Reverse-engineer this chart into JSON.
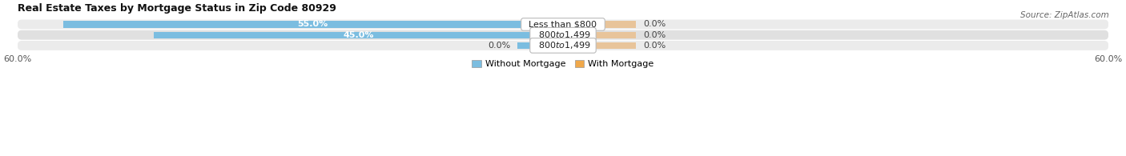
{
  "title": "Real Estate Taxes by Mortgage Status in Zip Code 80929",
  "source": "Source: ZipAtlas.com",
  "rows": [
    {
      "label": "Less than $800",
      "without_mortgage": 55.0,
      "with_mortgage": 0.0
    },
    {
      "label": "$800 to $1,499",
      "without_mortgage": 45.0,
      "with_mortgage": 0.0
    },
    {
      "label": "$800 to $1,499",
      "without_mortgage": 0.0,
      "with_mortgage": 0.0
    }
  ],
  "x_max": 60.0,
  "color_without": "#7BBDE0",
  "color_with": "#E8C49A",
  "color_row_bg_light": "#EBEBEB",
  "color_row_bg_dark": "#E0E0E0",
  "bar_height": 0.62,
  "title_fontsize": 9,
  "source_fontsize": 7.5,
  "tick_fontsize": 8,
  "label_fontsize": 8,
  "value_fontsize": 8,
  "legend_fontsize": 8,
  "min_bar_display": 5.0,
  "row3_without_display": 5.0,
  "row3_with_display": 8.0
}
